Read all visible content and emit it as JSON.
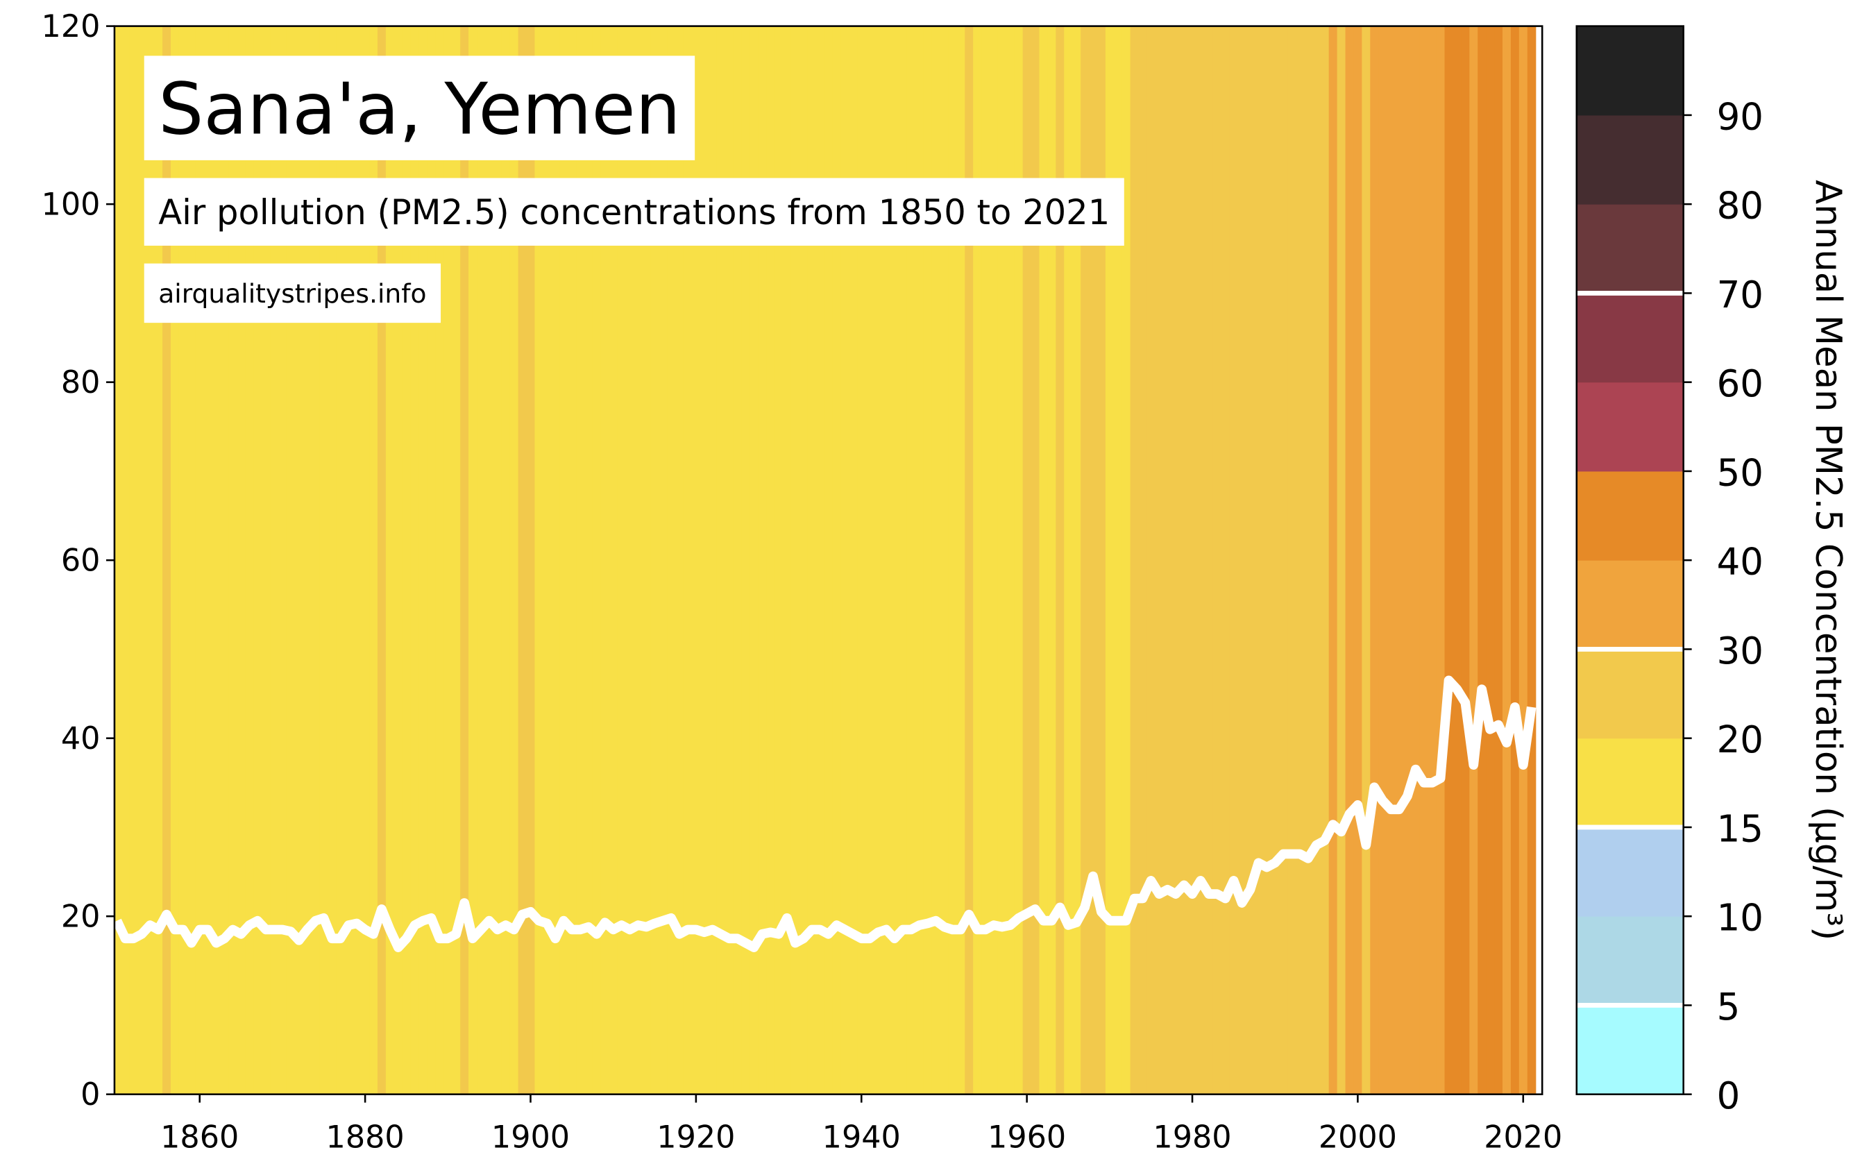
{
  "chart_data": {
    "type": "line",
    "title": "Sana'a, Yemen",
    "subtitle": "Air pollution (PM2.5) concentrations from 1850 to 2021",
    "source": "airqualitystripes.info",
    "x": [
      1850,
      1851,
      1852,
      1853,
      1854,
      1855,
      1856,
      1857,
      1858,
      1859,
      1860,
      1861,
      1862,
      1863,
      1864,
      1865,
      1866,
      1867,
      1868,
      1869,
      1870,
      1871,
      1872,
      1873,
      1874,
      1875,
      1876,
      1877,
      1878,
      1879,
      1880,
      1881,
      1882,
      1883,
      1884,
      1885,
      1886,
      1887,
      1888,
      1889,
      1890,
      1891,
      1892,
      1893,
      1894,
      1895,
      1896,
      1897,
      1898,
      1899,
      1900,
      1901,
      1902,
      1903,
      1904,
      1905,
      1906,
      1907,
      1908,
      1909,
      1910,
      1911,
      1912,
      1913,
      1914,
      1915,
      1916,
      1917,
      1918,
      1919,
      1920,
      1921,
      1922,
      1923,
      1924,
      1925,
      1926,
      1927,
      1928,
      1929,
      1930,
      1931,
      1932,
      1933,
      1934,
      1935,
      1936,
      1937,
      1938,
      1939,
      1940,
      1941,
      1942,
      1943,
      1944,
      1945,
      1946,
      1947,
      1948,
      1949,
      1950,
      1951,
      1952,
      1953,
      1954,
      1955,
      1956,
      1957,
      1958,
      1959,
      1960,
      1961,
      1962,
      1963,
      1964,
      1965,
      1966,
      1967,
      1968,
      1969,
      1970,
      1971,
      1972,
      1973,
      1974,
      1975,
      1976,
      1977,
      1978,
      1979,
      1980,
      1981,
      1982,
      1983,
      1984,
      1985,
      1986,
      1987,
      1988,
      1989,
      1990,
      1991,
      1992,
      1993,
      1994,
      1995,
      1996,
      1997,
      1998,
      1999,
      2000,
      2001,
      2002,
      2003,
      2004,
      2005,
      2006,
      2007,
      2008,
      2009,
      2010,
      2011,
      2012,
      2013,
      2014,
      2015,
      2016,
      2017,
      2018,
      2019,
      2020,
      2021
    ],
    "series": [
      {
        "color": "#ffffff",
        "values": [
          19.5,
          17.5,
          17.5,
          18,
          19,
          18.5,
          20.2,
          18.5,
          18.5,
          17,
          18.5,
          18.5,
          17,
          17.5,
          18.5,
          18,
          19,
          19.5,
          18.5,
          18.5,
          18.5,
          18.3,
          17.3,
          18.5,
          19.5,
          19.8,
          17.5,
          17.5,
          19,
          19.2,
          18.5,
          18,
          20.8,
          18.5,
          16.5,
          17.5,
          19,
          19.5,
          19.8,
          17.5,
          17.5,
          18,
          21.5,
          17.5,
          18.5,
          19.5,
          18.5,
          19,
          18.5,
          20.2,
          20.5,
          19.5,
          19.2,
          17.5,
          19.5,
          18.5,
          18.5,
          18.8,
          18,
          19.3,
          18.5,
          19,
          18.5,
          19,
          18.8,
          19.2,
          19.5,
          19.8,
          18,
          18.5,
          18.5,
          18.2,
          18.5,
          18,
          17.5,
          17.5,
          17,
          16.5,
          18,
          18.2,
          18,
          19.8,
          17,
          17.5,
          18.5,
          18.5,
          18,
          19,
          18.5,
          18,
          17.5,
          17.5,
          18.2,
          18.5,
          17.5,
          18.5,
          18.5,
          19,
          19.2,
          19.5,
          18.8,
          18.5,
          18.5,
          20.2,
          18.5,
          18.5,
          19,
          18.8,
          19,
          19.8,
          20.3,
          20.8,
          19.5,
          19.5,
          21,
          19,
          19.3,
          21,
          24.5,
          20.5,
          19.5,
          19.5,
          19.5,
          22,
          22,
          24,
          22.5,
          23,
          22.5,
          23.5,
          22.5,
          24,
          22.5,
          22.5,
          22,
          24,
          21.5,
          23,
          26,
          25.5,
          26,
          27,
          27,
          27,
          26.5,
          28,
          28.5,
          30.3,
          29.5,
          31.5,
          32.5,
          28,
          34.5,
          33,
          32,
          32,
          33.5,
          36.5,
          35,
          35,
          35.5,
          46.5,
          45.5,
          44,
          37,
          45.5,
          41,
          41.5,
          39.5,
          43.5,
          37,
          43.5
        ]
      }
    ],
    "xlim": [
      1849.7,
      2022.3
    ],
    "ylim": [
      0,
      120
    ],
    "xticks": [
      1860,
      1880,
      1900,
      1920,
      1940,
      1960,
      1980,
      2000,
      2020
    ],
    "yticks": [
      0,
      20,
      40,
      60,
      80,
      100,
      120
    ],
    "colorbar": {
      "label": "Annual Mean PM2.5 Concentration (µg/m³)",
      "bounds": [
        0,
        5,
        10,
        15,
        20,
        30,
        40,
        50,
        60,
        70,
        80,
        90,
        100
      ],
      "colors": [
        "#a6fbff",
        "#add8e6",
        "#b0cfee",
        "#f8e047",
        "#f2c94c",
        "#f0a43d",
        "#e68a27",
        "#ac4453",
        "#883945",
        "#6a393c",
        "#452d30",
        "#222222"
      ],
      "ticks": [
        0,
        5,
        10,
        15,
        20,
        30,
        40,
        50,
        60,
        70,
        80,
        90
      ],
      "lines": [
        5,
        15,
        30,
        70
      ],
      "line_color": "#ffffff"
    }
  }
}
